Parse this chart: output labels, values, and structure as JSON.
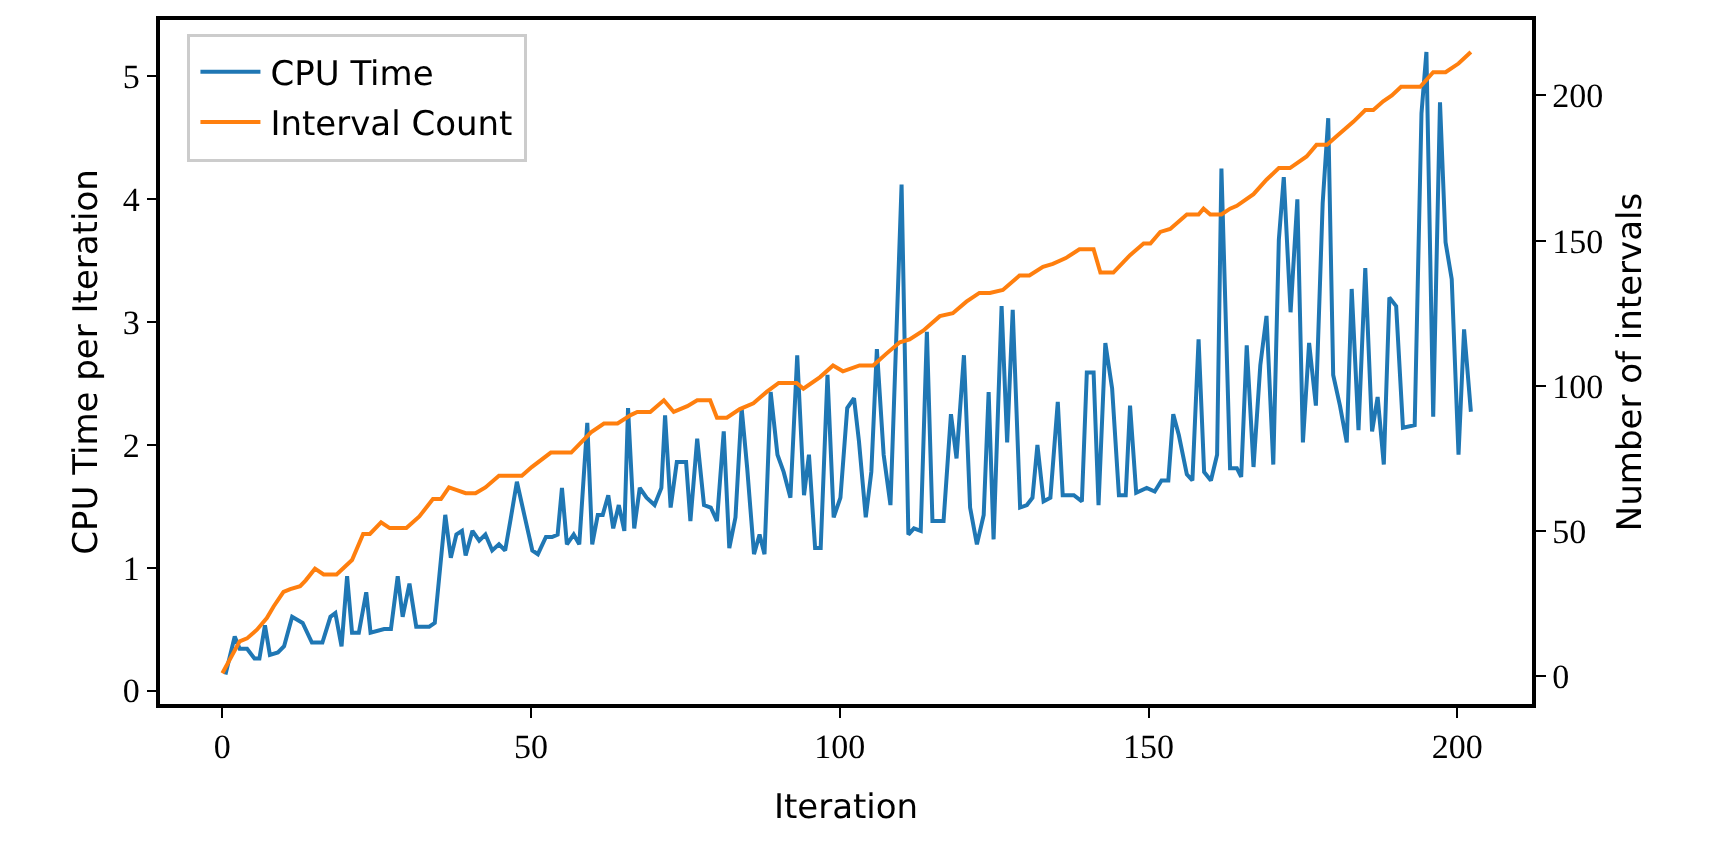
{
  "chart_data": {
    "type": "line",
    "xlabel": "Iteration",
    "ylabel": "CPU Time per Iteration",
    "y2label": "Number of intervals",
    "xlim": [
      -10.1,
      212.1
    ],
    "xticks": [
      0,
      50,
      100,
      150,
      200
    ],
    "ylim": [
      -0.11,
      5.46
    ],
    "yticks": [
      0,
      1,
      2,
      3,
      4,
      5
    ],
    "y2lim": [
      -9.6,
      226
    ],
    "y2ticks": [
      0,
      50,
      100,
      150,
      200
    ],
    "legend": "top left",
    "series": [
      {
        "name": "CPU Time",
        "color": "#1f77b4",
        "x": [
          0.5,
          2,
          2.8,
          4,
          5.2,
          6,
          6.9,
          7.7,
          9,
          10,
          11.3,
          13,
          14.5,
          16.2,
          17.5,
          18.3,
          19.3,
          20.2,
          21,
          22.1,
          23.3,
          24,
          26.2,
          27.3,
          28.4,
          29.2,
          30.3,
          31.4,
          33.5,
          34.4,
          36.1,
          37,
          37.9,
          38.8,
          39.4,
          40.5,
          41.6,
          42.6,
          43.7,
          44.8,
          45.8,
          46.7,
          47.7,
          48.9,
          50.2,
          51.1,
          52.4,
          53.4,
          54.3,
          55,
          55.8,
          56.9,
          57.8,
          59.1,
          59.9,
          60.8,
          61.6,
          62.5,
          63.3,
          64.2,
          65.1,
          65.7,
          66.7,
          67.6,
          68.7,
          70,
          71.1,
          71.7,
          72.6,
          73.6,
          75.1,
          75.8,
          76.9,
          78,
          79.1,
          80.1,
          81.2,
          82.1,
          83.1,
          84.1,
          85,
          86.1,
          87,
          87.8,
          88.8,
          89.9,
          90.9,
          92,
          93.1,
          94.2,
          95,
          96,
          96.9,
          98,
          99,
          100.1,
          101.2,
          102.3,
          103.1,
          104.2,
          105.1,
          106,
          107.1,
          108.2,
          110,
          111.1,
          112,
          113.1,
          114.1,
          115,
          116.8,
          118,
          118.9,
          120.1,
          121.1,
          122.2,
          123.3,
          124.1,
          124.9,
          126.2,
          127.1,
          128,
          129.2,
          130.3,
          131.2,
          132,
          133,
          134.1,
          135.3,
          136.1,
          137.9,
          139.2,
          140,
          141.1,
          141.9,
          143,
          144.1,
          145.2,
          146.3,
          147,
          148,
          149.7,
          151,
          152.1,
          153.2,
          154,
          154.9,
          156.2,
          157.1,
          158.1,
          159,
          160.1,
          161.1,
          161.8,
          163.2,
          164.3,
          165,
          165.9,
          167,
          168.1,
          169.1,
          170.2,
          171.1,
          171.9,
          173,
          174.1,
          175,
          176,
          177.1,
          178.2,
          179.1,
          179.9,
          181,
          182.1,
          182.9,
          184,
          185.1,
          186.2,
          187.1,
          188.1,
          189,
          190.1,
          191.2,
          193.1,
          194.2,
          195,
          196.1,
          197.2,
          198.1,
          199.1,
          200.2,
          201.1,
          202.2
        ],
        "values": [
          0.13,
          0.44,
          0.34,
          0.34,
          0.26,
          0.26,
          0.53,
          0.29,
          0.31,
          0.36,
          0.6,
          0.55,
          0.39,
          0.39,
          0.6,
          0.63,
          0.36,
          0.93,
          0.47,
          0.47,
          0.8,
          0.47,
          0.5,
          0.5,
          0.93,
          0.6,
          0.87,
          0.52,
          0.52,
          0.55,
          1.43,
          1.08,
          1.27,
          1.3,
          1.1,
          1.3,
          1.22,
          1.27,
          1.14,
          1.19,
          1.14,
          1.4,
          1.7,
          1.43,
          1.14,
          1.11,
          1.25,
          1.25,
          1.27,
          1.65,
          1.19,
          1.27,
          1.19,
          2.18,
          1.19,
          1.43,
          1.43,
          1.59,
          1.32,
          1.51,
          1.3,
          2.3,
          1.32,
          1.65,
          1.57,
          1.51,
          1.65,
          2.24,
          1.49,
          1.86,
          1.86,
          1.38,
          2.05,
          1.51,
          1.49,
          1.38,
          2.11,
          1.16,
          1.41,
          2.3,
          1.81,
          1.11,
          1.27,
          1.11,
          2.43,
          1.92,
          1.78,
          1.57,
          2.73,
          1.59,
          1.92,
          1.16,
          1.16,
          2.57,
          1.41,
          1.57,
          2.3,
          2.38,
          2.03,
          1.41,
          1.78,
          2.78,
          1.92,
          1.51,
          4.12,
          1.27,
          1.32,
          1.3,
          2.92,
          1.38,
          1.38,
          2.25,
          1.89,
          2.73,
          1.49,
          1.19,
          1.43,
          2.43,
          1.23,
          3.13,
          2.02,
          3.1,
          1.49,
          1.51,
          1.57,
          2.0,
          1.54,
          1.57,
          2.35,
          1.59,
          1.59,
          1.54,
          2.59,
          2.59,
          1.51,
          2.83,
          2.46,
          1.59,
          1.59,
          2.32,
          1.61,
          1.65,
          1.62,
          1.71,
          1.71,
          2.25,
          2.08,
          1.76,
          1.71,
          2.86,
          1.78,
          1.71,
          1.92,
          4.25,
          1.81,
          1.81,
          1.74,
          2.81,
          1.82,
          2.65,
          3.05,
          1.84,
          3.67,
          4.18,
          3.08,
          4.0,
          2.02,
          2.83,
          2.32,
          3.97,
          4.66,
          2.57,
          2.32,
          2.02,
          3.27,
          2.12,
          3.44,
          2.11,
          2.39,
          1.84,
          3.2,
          3.13,
          2.14,
          2.16,
          4.7,
          5.2,
          2.23,
          4.79,
          3.65,
          3.35,
          1.92,
          2.94,
          2.27
        ]
      },
      {
        "name": "Interval Count",
        "color": "#ff7f0e",
        "axis": "y2",
        "x": [
          0,
          2.8,
          4,
          5.6,
          7.2,
          8.3,
          9.9,
          11,
          12.6,
          13.5,
          15,
          16.4,
          18.5,
          21,
          22.8,
          23.9,
          25.7,
          27.1,
          29.8,
          31.9,
          34.1,
          35.4,
          36.7,
          38.1,
          39.4,
          41,
          42.6,
          44.8,
          48.5,
          50.1,
          53.2,
          56.5,
          59.7,
          61.8,
          64,
          66.2,
          67.2,
          69.3,
          71.5,
          73.1,
          75.3,
          76.9,
          79,
          80.1,
          81.7,
          83.8,
          86,
          88.2,
          90.1,
          93,
          94.1,
          96.8,
          98.9,
          100.5,
          103.2,
          105.4,
          107.5,
          109.7,
          111.3,
          113.5,
          116.2,
          118.3,
          120.5,
          122.6,
          124.3,
          126.4,
          129.1,
          130.7,
          132.9,
          134.5,
          136.6,
          138.8,
          141.1,
          142.2,
          144.3,
          147,
          149.2,
          150.3,
          151.9,
          153.5,
          156.2,
          158.1,
          158.9,
          160,
          161.8,
          163.2,
          164.3,
          167,
          169.1,
          171.1,
          172.9,
          175.6,
          177.2,
          178.9,
          180.5,
          183.2,
          185.1,
          186.4,
          188,
          189.4,
          190.9,
          194,
          196.1,
          198.1,
          200.2,
          202.2
        ],
        "values": [
          1,
          12,
          13,
          16,
          20,
          24,
          29,
          30,
          31,
          33,
          37,
          35,
          35,
          40,
          49,
          49,
          53,
          51,
          51,
          55,
          61,
          61,
          65,
          64,
          63,
          63,
          65,
          69,
          69,
          72,
          77,
          77,
          84,
          87,
          87,
          90,
          91,
          91,
          95,
          91,
          93,
          95,
          95,
          89,
          89,
          92,
          94,
          98,
          101,
          101,
          99,
          103,
          107,
          105,
          107,
          107,
          111,
          115,
          116,
          119,
          124,
          125,
          129,
          132,
          132,
          133,
          138,
          138,
          141,
          142,
          144,
          147,
          147,
          139,
          139,
          145,
          149,
          149,
          153,
          154,
          159,
          159,
          161,
          159,
          159,
          161,
          162,
          166,
          171,
          175,
          175,
          179,
          183,
          183,
          186,
          191,
          195,
          195,
          198,
          200,
          203,
          203,
          208,
          208,
          211,
          215
        ]
      }
    ]
  }
}
